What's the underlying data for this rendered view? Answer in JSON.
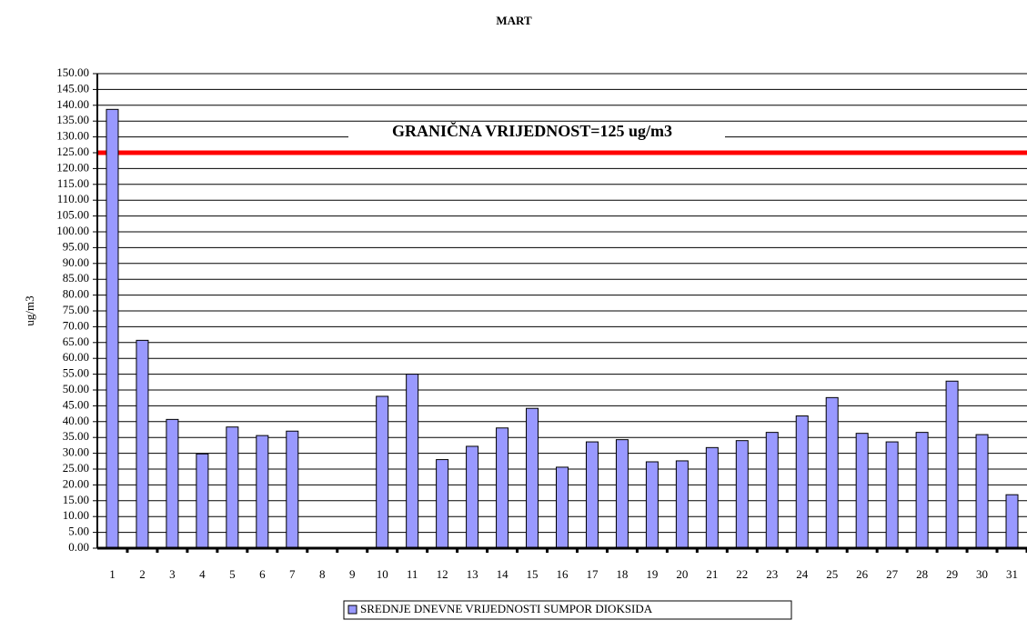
{
  "chart_data": {
    "type": "bar",
    "title": "MART",
    "ylabel": "ug/m3",
    "categories": [
      "1",
      "2",
      "3",
      "4",
      "5",
      "6",
      "7",
      "8",
      "9",
      "10",
      "11",
      "12",
      "13",
      "14",
      "15",
      "16",
      "17",
      "18",
      "19",
      "20",
      "21",
      "22",
      "23",
      "24",
      "25",
      "26",
      "27",
      "28",
      "29",
      "30",
      "31"
    ],
    "series": [
      {
        "name": "SREDNJE DNEVNE VRIJEDNOSTI SUMPOR DIOKSIDA",
        "color": "#9999ff",
        "values": [
          138.7,
          65.7,
          40.7,
          29.8,
          38.3,
          35.6,
          37,
          null,
          null,
          48,
          55,
          28,
          32.2,
          38,
          44.2,
          25.6,
          33.6,
          34.3,
          27.3,
          27.6,
          31.8,
          34,
          36.6,
          41.8,
          47.6,
          36.3,
          33.6,
          36.6,
          52.8,
          35.9,
          16.9
        ]
      }
    ],
    "threshold": {
      "value": 125,
      "label": "GRANIČNA VRIJEDNOST=125 ug/m3",
      "color": "#ff0000"
    },
    "ylim": [
      0,
      150
    ],
    "yticks": [
      {
        "value": 0,
        "label": "0.00"
      },
      {
        "value": 5,
        "label": "5.00"
      },
      {
        "value": 10,
        "label": "10.00"
      },
      {
        "value": 15,
        "label": "15.00"
      },
      {
        "value": 20,
        "label": "20.00"
      },
      {
        "value": 25,
        "label": "25.00"
      },
      {
        "value": 30,
        "label": "30.00"
      },
      {
        "value": 35,
        "label": "35.00"
      },
      {
        "value": 40,
        "label": "40.00"
      },
      {
        "value": 45,
        "label": "45.00"
      },
      {
        "value": 50,
        "label": "50.00"
      },
      {
        "value": 55,
        "label": "55.00"
      },
      {
        "value": 60,
        "label": "60.00"
      },
      {
        "value": 65,
        "label": "65.00"
      },
      {
        "value": 70,
        "label": "70.00"
      },
      {
        "value": 75,
        "label": "75.00"
      },
      {
        "value": 80,
        "label": "80.00"
      },
      {
        "value": 85,
        "label": "85.00"
      },
      {
        "value": 90,
        "label": "90.00"
      },
      {
        "value": 95,
        "label": "95.00"
      },
      {
        "value": 100,
        "label": "100.00"
      },
      {
        "value": 105,
        "label": "105.00"
      },
      {
        "value": 110,
        "label": "110.00"
      },
      {
        "value": 115,
        "label": "115.00"
      },
      {
        "value": 120,
        "label": "120.00"
      },
      {
        "value": 125,
        "label": "125.00"
      },
      {
        "value": 130,
        "label": "130.00"
      },
      {
        "value": 135,
        "label": "135.00"
      },
      {
        "value": 140,
        "label": "140.00"
      },
      {
        "value": 145,
        "label": "145.00"
      },
      {
        "value": 150,
        "label": "150.00"
      }
    ],
    "grid": true
  }
}
